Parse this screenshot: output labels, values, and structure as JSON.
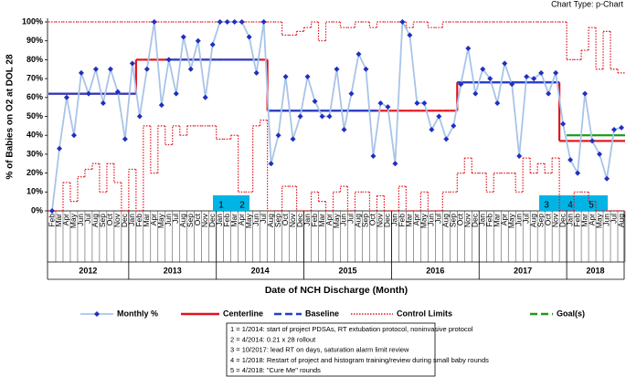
{
  "chart_data": {
    "type": "p-chart",
    "chart_type_label": "Chart Type: p-Chart",
    "y_label": "% of Babies on O2 at DOL 28",
    "x_label": "Date of NCH Discharge (Month)",
    "categories": [
      "Feb",
      "Mar",
      "Apr",
      "May",
      "Jun",
      "Jul",
      "Aug",
      "Sep",
      "Oct",
      "Nov",
      "Dec",
      "Jan",
      "Feb",
      "Mar",
      "Apr",
      "May",
      "Jun",
      "Jul",
      "Aug",
      "Sep",
      "Oct",
      "Nov",
      "Dec",
      "Jan",
      "Feb",
      "Mar",
      "Apr",
      "May",
      "Jun",
      "Jul",
      "Aug",
      "Sep",
      "Oct",
      "Nov",
      "Dec",
      "Jan",
      "Feb",
      "Mar",
      "Apr",
      "May",
      "Jun",
      "Jul",
      "Aug",
      "Sep",
      "Oct",
      "Nov",
      "Dec",
      "Jan",
      "Feb",
      "Mar",
      "Apr",
      "May",
      "Jun",
      "Jul",
      "Aug",
      "Sep",
      "Oct",
      "Nov",
      "Dec",
      "Jan",
      "Feb",
      "Mar",
      "Apr",
      "May",
      "Jun",
      "Jul",
      "Aug",
      "Sep",
      "Oct",
      "Nov",
      "Dec",
      "Jan",
      "Feb",
      "Mar",
      "Apr",
      "May",
      "Jun",
      "Jul",
      "Aug"
    ],
    "years": [
      "2012",
      "2013",
      "2014",
      "2015",
      "2016",
      "2017",
      "2018"
    ],
    "ylim": [
      0,
      100
    ],
    "yticks": [
      {
        "value": 0,
        "label": "0%"
      },
      {
        "value": 10,
        "label": "10%"
      },
      {
        "value": 20,
        "label": "20%"
      },
      {
        "value": 30,
        "label": "30%"
      },
      {
        "value": 40,
        "label": "40%"
      },
      {
        "value": 50,
        "label": "50%"
      },
      {
        "value": 60,
        "label": "60%"
      },
      {
        "value": 70,
        "label": "70%"
      },
      {
        "value": 80,
        "label": "80%"
      },
      {
        "value": 90,
        "label": "90%"
      },
      {
        "value": 100,
        "label": "100%"
      }
    ],
    "series": [
      {
        "name": "Monthly %",
        "color": "#1f2fbf",
        "line_color": "#a9c4e8",
        "style": "markers",
        "values": [
          0,
          33,
          60,
          40,
          73,
          62,
          75,
          57,
          75,
          63,
          38,
          78,
          50,
          75,
          100,
          56,
          80,
          62,
          92,
          75,
          90,
          60,
          88,
          100,
          100,
          100,
          100,
          92,
          73,
          100,
          25,
          40,
          71,
          38,
          50,
          71,
          58,
          50,
          50,
          75,
          43,
          62,
          83,
          75,
          29,
          57,
          55,
          25,
          100,
          93,
          57,
          57,
          43,
          50,
          38,
          45,
          67,
          86,
          62,
          75,
          70,
          57,
          78,
          67,
          29,
          71,
          70,
          73,
          62,
          73,
          46,
          27,
          20,
          62,
          37,
          30,
          17,
          43,
          44
        ]
      },
      {
        "name": "Centerline",
        "color": "#e0141e",
        "style": "solid",
        "values": [
          62,
          62,
          62,
          62,
          62,
          62,
          62,
          62,
          62,
          62,
          62,
          62,
          80,
          80,
          80,
          80,
          80,
          80,
          80,
          80,
          80,
          80,
          80,
          80,
          80,
          80,
          80,
          80,
          80,
          80,
          53,
          53,
          53,
          53,
          53,
          53,
          53,
          53,
          53,
          53,
          53,
          53,
          53,
          53,
          53,
          53,
          53,
          53,
          53,
          53,
          53,
          53,
          53,
          53,
          53,
          53,
          68,
          68,
          68,
          68,
          68,
          68,
          68,
          68,
          68,
          68,
          68,
          68,
          68,
          68,
          37,
          37,
          37,
          37,
          37,
          37,
          37,
          37,
          37
        ]
      },
      {
        "name": "Baseline",
        "color": "#1f3fd0",
        "style": "dashed",
        "values": [
          62,
          62,
          62,
          62,
          62,
          62,
          62,
          62,
          62,
          62,
          62,
          62,
          null,
          null,
          null,
          null,
          80,
          80,
          80,
          80,
          80,
          80,
          80,
          80,
          80,
          80,
          80,
          80,
          80,
          null,
          53,
          53,
          53,
          53,
          53,
          53,
          53,
          53,
          53,
          53,
          53,
          53,
          53,
          53,
          53,
          null,
          null,
          null,
          null,
          null,
          null,
          null,
          null,
          null,
          null,
          null,
          68,
          68,
          68,
          68,
          68,
          68,
          68,
          68,
          68,
          68,
          68,
          68,
          68,
          68,
          null,
          null,
          null,
          null,
          null,
          null,
          null,
          null,
          null
        ]
      },
      {
        "name": "Control Limits",
        "color": "#e0141e",
        "style": "dotted",
        "upper": [
          100,
          100,
          100,
          100,
          100,
          100,
          100,
          100,
          100,
          100,
          100,
          100,
          100,
          100,
          100,
          100,
          100,
          100,
          100,
          100,
          100,
          100,
          100,
          100,
          100,
          100,
          100,
          100,
          100,
          100,
          100,
          100,
          93,
          93,
          95,
          97,
          100,
          90,
          100,
          100,
          97,
          97,
          100,
          100,
          97,
          100,
          100,
          100,
          100,
          97,
          100,
          100,
          97,
          97,
          100,
          100,
          100,
          100,
          100,
          100,
          100,
          100,
          100,
          100,
          100,
          100,
          100,
          100,
          100,
          100,
          100,
          80,
          80,
          85,
          97,
          75,
          95,
          75,
          73
        ],
        "lower": [
          0,
          0,
          15,
          5,
          18,
          22,
          25,
          10,
          25,
          15,
          0,
          22,
          0,
          45,
          20,
          45,
          35,
          45,
          40,
          45,
          45,
          45,
          45,
          38,
          38,
          40,
          10,
          10,
          45,
          48,
          0,
          0,
          13,
          13,
          0,
          0,
          10,
          5,
          0,
          10,
          13,
          0,
          10,
          10,
          0,
          8,
          0,
          0,
          13,
          0,
          0,
          10,
          0,
          0,
          10,
          10,
          20,
          28,
          20,
          20,
          10,
          20,
          20,
          20,
          10,
          28,
          20,
          25,
          20,
          28,
          0,
          0,
          10,
          10,
          5,
          0,
          0,
          0,
          0
        ]
      },
      {
        "name": "Goal(s)",
        "color": "#1a9a1a",
        "style": "dashed",
        "values": [
          null,
          null,
          null,
          null,
          null,
          null,
          null,
          null,
          null,
          null,
          null,
          null,
          null,
          null,
          null,
          null,
          null,
          null,
          null,
          null,
          null,
          null,
          null,
          null,
          null,
          null,
          null,
          null,
          null,
          null,
          null,
          null,
          null,
          null,
          null,
          null,
          null,
          null,
          null,
          null,
          null,
          null,
          null,
          null,
          null,
          null,
          null,
          null,
          null,
          null,
          null,
          null,
          null,
          null,
          null,
          null,
          null,
          null,
          null,
          null,
          null,
          null,
          null,
          null,
          null,
          null,
          null,
          null,
          null,
          null,
          null,
          40,
          40,
          40,
          40,
          40,
          40,
          40,
          40
        ]
      }
    ],
    "phase_markers": [
      "1",
      "2",
      "3",
      "4",
      "5"
    ],
    "notes": [
      "1 = 1/2014: start of project PDSAs, RT extubation protocol,  noninvasive protocol",
      "2 = 4/2014:  0.21 x 28 rollout",
      "3 = 10/2017:  lead RT on days, saturation alarm limit review",
      "4 = 1/2018:  Restart of project and histogram training/review during small baby rounds",
      "5 = 4/2018:  \"Cure Me\" rounds"
    ]
  }
}
